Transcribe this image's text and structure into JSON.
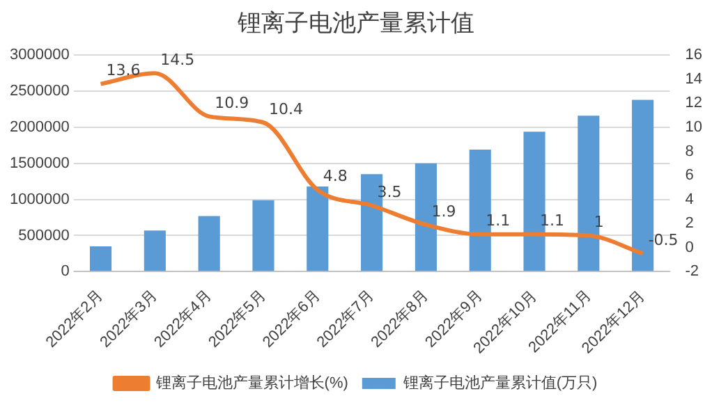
{
  "chart_data": {
    "type": "bar",
    "title": "锂离子电池产量累计值",
    "categories": [
      "2022年2月",
      "2022年3月",
      "2022年4月",
      "2022年5月",
      "2022年6月",
      "2022年7月",
      "2022年8月",
      "2022年9月",
      "2022年10月",
      "2022年11月",
      "2022年12月"
    ],
    "series": [
      {
        "name": "锂离子电池产量累计值(万只)",
        "color": "#5b9bd5",
        "values": [
          350000,
          570000,
          770000,
          990000,
          1180000,
          1350000,
          1500000,
          1690000,
          1940000,
          2160000,
          2380000
        ]
      },
      {
        "name": "锂离子电池产量累计增长(%)",
        "type": "line",
        "axis": "y2",
        "color": "#ed7d31",
        "values": [
          13.6,
          14.5,
          10.9,
          10.4,
          4.8,
          3.5,
          1.9,
          1.1,
          1.1,
          1,
          -0.5
        ],
        "value_labels": [
          "13.6",
          "14.5",
          "10.9",
          "10.4",
          "4.8",
          "3.5",
          "1.9",
          "1.1",
          "1.1",
          "1",
          "-0.5"
        ]
      }
    ],
    "ylim": [
      0,
      3000000
    ],
    "yticks": [
      0,
      500000,
      1000000,
      1500000,
      2000000,
      2500000,
      3000000
    ],
    "y2lim": [
      -2,
      16
    ],
    "y2ticks": [
      -2,
      0,
      2,
      4,
      6,
      8,
      10,
      12,
      14,
      16
    ],
    "grid": "y",
    "legend": "bottom",
    "marker": "none"
  }
}
